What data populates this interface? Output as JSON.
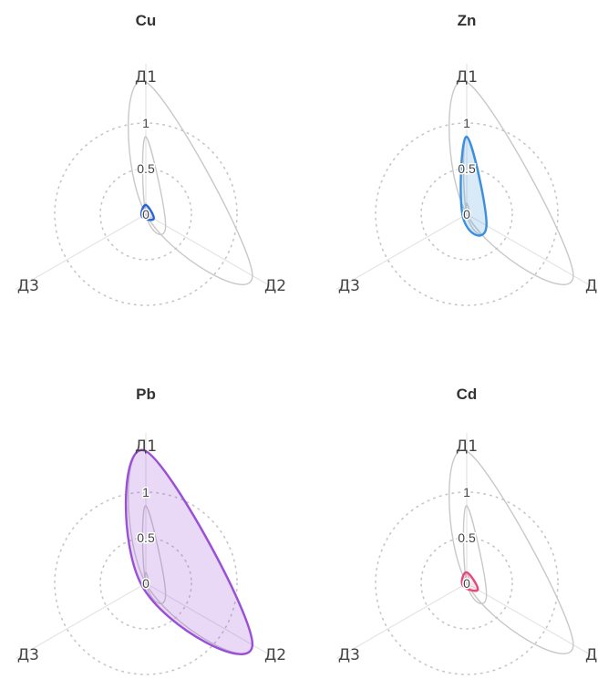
{
  "chart_data": {
    "type": "radar",
    "axes": [
      "Д1",
      "Д2",
      "Д3"
    ],
    "radial_ticks": [
      "0",
      "0.5",
      "1"
    ],
    "grid": "dotted",
    "background_series": [
      {
        "values": [
          1.45,
          1.35,
          0.0
        ],
        "color": "#c8c8c8"
      },
      {
        "values": [
          0.85,
          0.25,
          0.0
        ],
        "color": "#c8c8c8"
      },
      {
        "values": [
          0.12,
          0.05,
          0.0
        ],
        "color": "#c8c8c8"
      }
    ],
    "panels": [
      {
        "title": "Cu",
        "values": [
          0.1,
          0.1,
          0.05
        ],
        "color": "#2962d6",
        "fill": "rgba(41,98,214,0.18)"
      },
      {
        "title": "Zn",
        "values": [
          0.85,
          0.25,
          0.05
        ],
        "color": "#3a8fde",
        "fill": "rgba(58,143,222,0.20)"
      },
      {
        "title": "Pb",
        "values": [
          1.45,
          1.35,
          0.05
        ],
        "color": "#9a50d6",
        "fill": "rgba(154,80,214,0.22)"
      },
      {
        "title": "Cd",
        "values": [
          0.12,
          0.14,
          0.05
        ],
        "color": "#e8477a",
        "fill": "rgba(232,71,122,0.12)"
      }
    ]
  }
}
